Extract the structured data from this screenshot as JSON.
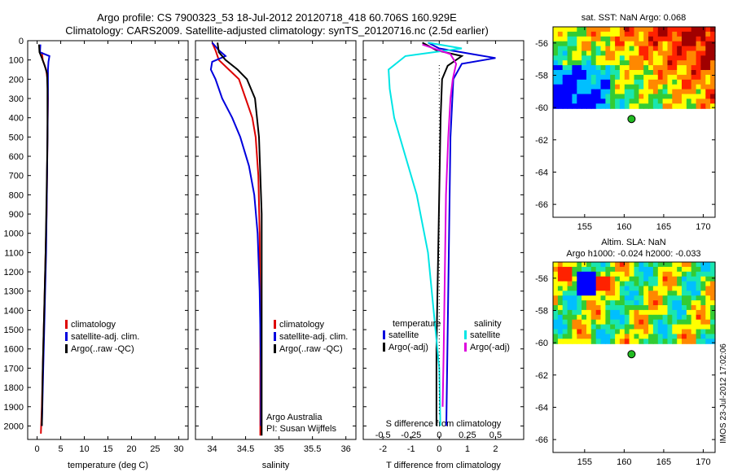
{
  "header": {
    "title_line1": "Argo profile: CS 7900323_53 18-Jul-2012 20120718_418 60.706S 160.929E",
    "title_line2": "Climatology: CARS2009. Satellite-adjusted climatology: synTS_20120716.nc (2.5d earlier)"
  },
  "colors": {
    "climatology": "#dd0000",
    "satellite": "#0000dd",
    "argo": "#000000",
    "sat_salinity": "#00e5e5",
    "argo_salinity": "#dd00dd"
  },
  "depth_ticks": [
    0,
    100,
    200,
    300,
    400,
    500,
    600,
    700,
    800,
    900,
    1000,
    1100,
    1200,
    1300,
    1400,
    1500,
    1600,
    1700,
    1800,
    1900,
    2000
  ],
  "chart_data": [
    {
      "id": "temperature",
      "type": "line",
      "xlabel": "temperature (deg C)",
      "xlim": [
        -2,
        32
      ],
      "ylim": [
        2070,
        0
      ],
      "xticks": [
        0,
        5,
        10,
        15,
        20,
        25,
        30
      ],
      "legend": [
        "climatology",
        "satellite-adj. clim.",
        "Argo(..raw -QC)"
      ],
      "series": [
        {
          "name": "climatology",
          "color": "#dd0000",
          "points": [
            [
              1.0,
              60
            ],
            [
              1.2,
              100
            ],
            [
              1.9,
              150
            ],
            [
              2.2,
              200
            ],
            [
              2.3,
              300
            ],
            [
              2.2,
              500
            ],
            [
              2.1,
              700
            ],
            [
              2.0,
              900
            ],
            [
              1.8,
              1100
            ],
            [
              1.6,
              1300
            ],
            [
              1.4,
              1500
            ],
            [
              1.2,
              1700
            ],
            [
              1.0,
              1900
            ],
            [
              0.8,
              2040
            ]
          ]
        },
        {
          "name": "satellite-adj. clim.",
          "color": "#0000dd",
          "points": [
            [
              0.7,
              20
            ],
            [
              0.6,
              60
            ],
            [
              2.6,
              80
            ],
            [
              2.4,
              110
            ],
            [
              2.3,
              150
            ],
            [
              2.3,
              250
            ],
            [
              2.2,
              500
            ],
            [
              2.1,
              700
            ],
            [
              2.0,
              900
            ],
            [
              1.9,
              1100
            ],
            [
              1.7,
              1300
            ],
            [
              1.5,
              1500
            ],
            [
              1.3,
              1700
            ],
            [
              1.1,
              1900
            ],
            [
              1.0,
              2000
            ]
          ]
        },
        {
          "name": "Argo(..raw -QC)",
          "color": "#000000",
          "points": [
            [
              0.4,
              20
            ],
            [
              0.5,
              60
            ],
            [
              1.0,
              90
            ],
            [
              1.6,
              130
            ],
            [
              2.1,
              170
            ],
            [
              2.2,
              250
            ],
            [
              2.2,
              500
            ],
            [
              2.0,
              800
            ],
            [
              1.8,
              1100
            ],
            [
              1.5,
              1400
            ],
            [
              1.2,
              1700
            ],
            [
              1.0,
              2000
            ]
          ]
        }
      ]
    },
    {
      "id": "salinity",
      "type": "line",
      "xlabel": "salinity",
      "xlim": [
        33.75,
        36.15
      ],
      "ylim": [
        2070,
        0
      ],
      "xticks": [
        34,
        34.5,
        35,
        35.5,
        36
      ],
      "legend": [
        "climatology",
        "satellite-adj. clim.",
        "Argo(..raw -QC)"
      ],
      "annotation": [
        "Argo Australia",
        "PI: Susan Wijffels"
      ],
      "series": [
        {
          "name": "climatology",
          "color": "#dd0000",
          "points": [
            [
              34.0,
              10
            ],
            [
              34.05,
              50
            ],
            [
              34.1,
              100
            ],
            [
              34.25,
              150
            ],
            [
              34.4,
              200
            ],
            [
              34.5,
              300
            ],
            [
              34.6,
              400
            ],
            [
              34.65,
              500
            ],
            [
              34.69,
              700
            ],
            [
              34.71,
              1000
            ],
            [
              34.72,
              1500
            ],
            [
              34.72,
              2050
            ]
          ]
        },
        {
          "name": "satellite-adj. clim.",
          "color": "#0000dd",
          "points": [
            [
              34.0,
              10
            ],
            [
              34.1,
              50
            ],
            [
              34.2,
              80
            ],
            [
              34.0,
              110
            ],
            [
              33.98,
              150
            ],
            [
              34.05,
              200
            ],
            [
              34.15,
              300
            ],
            [
              34.3,
              400
            ],
            [
              34.42,
              500
            ],
            [
              34.55,
              650
            ],
            [
              34.63,
              800
            ],
            [
              34.68,
              1000
            ],
            [
              34.71,
              1300
            ],
            [
              34.73,
              1700
            ],
            [
              34.73,
              2000
            ]
          ]
        },
        {
          "name": "Argo(..raw -QC)",
          "color": "#000000",
          "points": [
            [
              34.08,
              10
            ],
            [
              34.1,
              60
            ],
            [
              34.2,
              100
            ],
            [
              34.38,
              150
            ],
            [
              34.52,
              200
            ],
            [
              34.64,
              300
            ],
            [
              34.7,
              500
            ],
            [
              34.74,
              900
            ],
            [
              34.74,
              1500
            ],
            [
              34.74,
              2050
            ]
          ]
        }
      ]
    },
    {
      "id": "difference",
      "type": "line",
      "xlabel": "T difference from climatology",
      "xlabel_top": "S difference from climatology",
      "xlim": [
        -2.7,
        3.0
      ],
      "ylim": [
        2070,
        0
      ],
      "xticks": [
        -2,
        -1,
        0,
        1,
        2
      ],
      "xticks_top": [
        -0.5,
        -0.25,
        0,
        0.25,
        0.5
      ],
      "legend_left_title": "temperature",
      "legend_right_title": "salinity",
      "legend_left": [
        "satellite",
        "Argo(-adj)"
      ],
      "legend_right": [
        "satellite",
        "Argo(-adj)"
      ],
      "series": [
        {
          "name": "satellite",
          "color": "#0000dd",
          "points": [
            [
              -0.4,
              10
            ],
            [
              0,
              40
            ],
            [
              1.2,
              70
            ],
            [
              2.0,
              90
            ],
            [
              0.8,
              120
            ],
            [
              0.5,
              200
            ],
            [
              0.4,
              500
            ],
            [
              0.35,
              1000
            ],
            [
              0.3,
              1500
            ],
            [
              0.25,
              2000
            ]
          ]
        },
        {
          "name": "Argo(-adj)",
          "color": "#000000",
          "points": [
            [
              -0.6,
              10
            ],
            [
              -0.1,
              50
            ],
            [
              0.8,
              80
            ],
            [
              0.3,
              130
            ],
            [
              0.1,
              200
            ],
            [
              0.05,
              400
            ],
            [
              0,
              800
            ],
            [
              -0.05,
              1200
            ],
            [
              -0.1,
              1600
            ],
            [
              -0.1,
              2000
            ]
          ]
        },
        {
          "name": "satellite",
          "color": "#00e5e5",
          "points": [
            [
              -0.1,
              10
            ],
            [
              0.2,
              40
            ],
            [
              -0.3,
              80
            ],
            [
              -0.45,
              150
            ],
            [
              -0.44,
              250
            ],
            [
              -0.4,
              400
            ],
            [
              -0.3,
              600
            ],
            [
              -0.2,
              800
            ],
            [
              -0.1,
              1100
            ],
            [
              -0.05,
              1400
            ],
            [
              0,
              1700
            ],
            [
              0.01,
              2000
            ]
          ]
        },
        {
          "name": "Argo(-adj)",
          "color": "#dd00dd",
          "points": [
            [
              -0.15,
              20
            ],
            [
              0.1,
              70
            ],
            [
              0.15,
              120
            ],
            [
              0.12,
              200
            ],
            [
              0.1,
              300
            ],
            [
              0.08,
              500
            ],
            [
              0.06,
              800
            ],
            [
              0.05,
              1200
            ],
            [
              0.04,
              1600
            ],
            [
              0.03,
              1900
            ]
          ]
        }
      ]
    },
    {
      "id": "sst_map",
      "type": "heatmap",
      "title": "sat. SST: NaN Argo: 0.068",
      "xlim": [
        151,
        171.5
      ],
      "ylim": [
        -66.8,
        -55
      ],
      "xticks": [
        155,
        160,
        165,
        170
      ],
      "yticks": [
        -56,
        -58,
        -60,
        -62,
        -64,
        -66
      ],
      "marker": [
        160.93,
        -60.71
      ]
    },
    {
      "id": "sla_map",
      "type": "heatmap",
      "title_line1": "Altim. SLA: NaN",
      "title_line2": "Argo h1000: -0.024 h2000: -0.033",
      "xlim": [
        151,
        171.5
      ],
      "ylim": [
        -66.8,
        -55
      ],
      "xticks": [
        155,
        160,
        165,
        170
      ],
      "yticks": [
        -56,
        -58,
        -60,
        -62,
        -64,
        -66
      ],
      "marker": [
        160.93,
        -60.71
      ]
    }
  ],
  "footer": {
    "stamp": "IMOS 23-Jul-2012 17:02:06"
  }
}
